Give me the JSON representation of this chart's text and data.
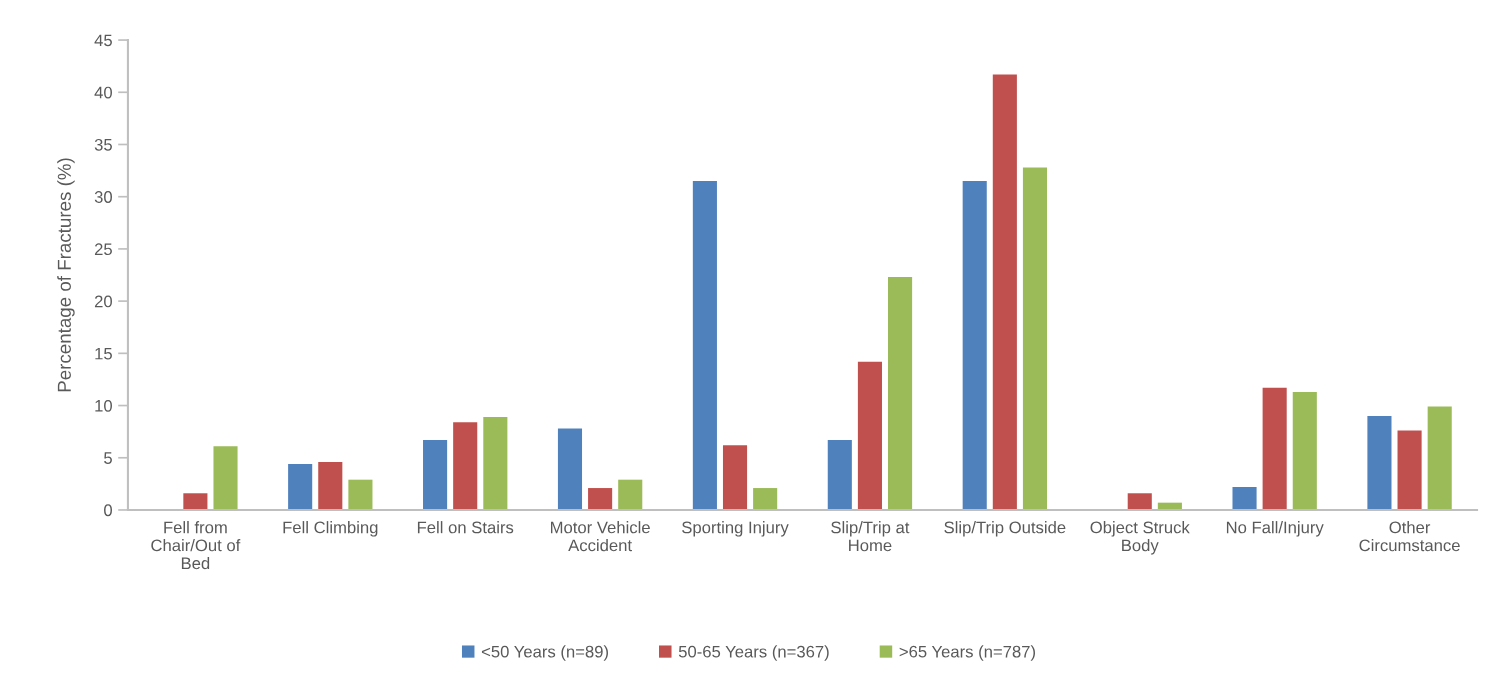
{
  "chart_data": {
    "type": "bar",
    "ylabel": "Percentage of Fractures (%)",
    "categories": [
      "Fell from Chair/Out of Bed",
      "Fell Climbing",
      "Fell on Stairs",
      "Motor Vehicle Accident",
      "Sporting Injury",
      "Slip/Trip at Home",
      "Slip/Trip Outside",
      "Object Struck Body",
      "No Fall/Injury",
      "Other Circumstance"
    ],
    "series": [
      {
        "name": "<50 Years (n=89)",
        "color": "#4f81bd",
        "values": [
          null,
          4.4,
          6.7,
          7.8,
          31.5,
          6.7,
          31.5,
          null,
          2.2,
          9.0
        ]
      },
      {
        "name": "50-65 Years (n=367)",
        "color": "#c0504d",
        "values": [
          1.6,
          4.6,
          8.4,
          2.1,
          6.2,
          14.2,
          41.7,
          1.6,
          11.7,
          7.6
        ]
      },
      {
        "name": ">65 Years (n=787)",
        "color": "#9bbb59",
        "values": [
          6.1,
          2.9,
          8.9,
          2.9,
          2.1,
          22.3,
          32.8,
          0.7,
          11.3,
          9.9
        ]
      }
    ],
    "ylim": [
      0,
      45
    ],
    "yticks": [
      0,
      5,
      10,
      15,
      20,
      25,
      30,
      35,
      40,
      45
    ],
    "legend": "bottom"
  }
}
